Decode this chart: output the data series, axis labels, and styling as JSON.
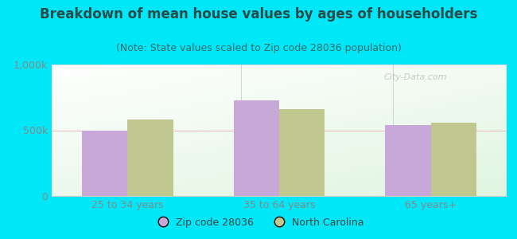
{
  "title": "Breakdown of mean house values by ages of householders",
  "subtitle": "(Note: State values scaled to Zip code 28036 population)",
  "categories": [
    "25 to 34 years",
    "35 to 64 years",
    "65 years+"
  ],
  "zip_values": [
    500000,
    725000,
    540000
  ],
  "nc_values": [
    580000,
    660000,
    555000
  ],
  "ylim": [
    0,
    1000000
  ],
  "ytick_labels": [
    "0",
    "500k",
    "1,000k"
  ],
  "zip_color": "#c8a8d8",
  "nc_color": "#c0c890",
  "background_outer": "#00e8f8",
  "title_color": "#2a4a4a",
  "subtitle_color": "#3a6a6a",
  "tick_color": "#888888",
  "watermark": "City-Data.com",
  "legend_zip_label": "Zip code 28036",
  "legend_nc_label": "North Carolina",
  "bar_width": 0.3,
  "title_fontsize": 12,
  "subtitle_fontsize": 9,
  "tick_fontsize": 9,
  "legend_fontsize": 9
}
